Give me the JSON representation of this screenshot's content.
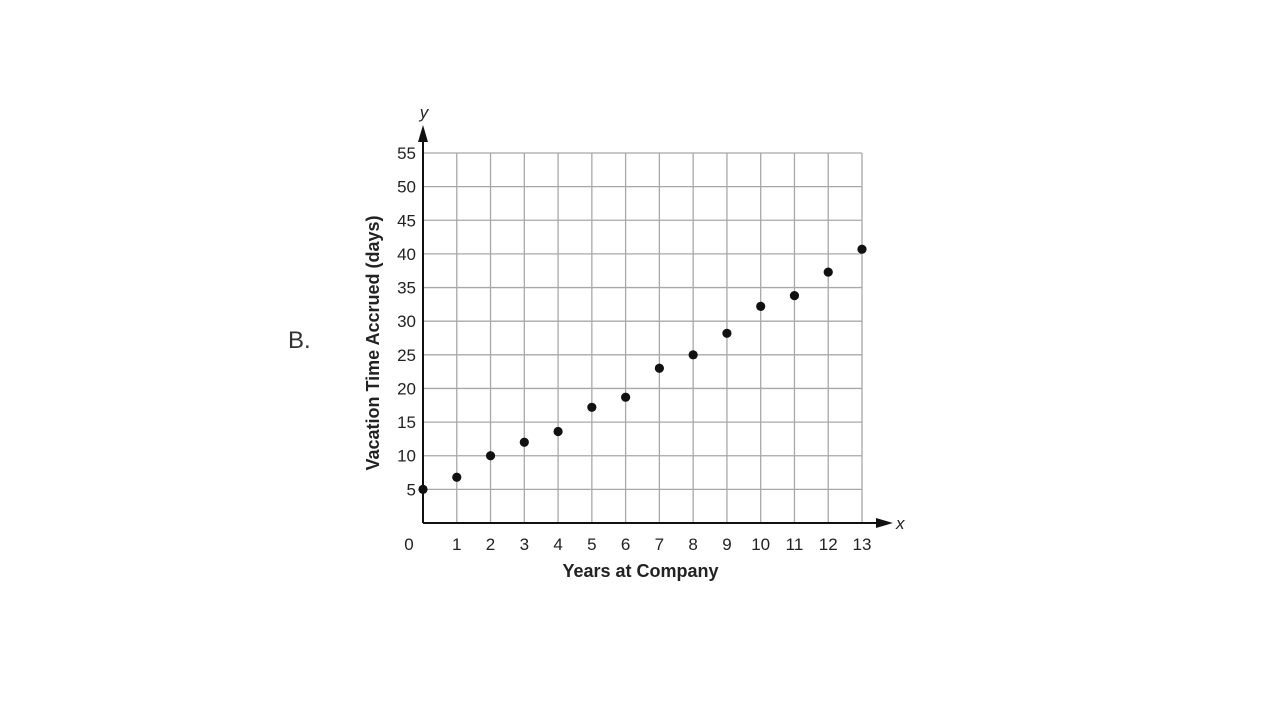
{
  "option_label": "B.",
  "chart_data": {
    "type": "scatter",
    "title": "",
    "xlabel": "Years at Company",
    "ylabel": "Vacation Time Accrued (days)",
    "x_axis_letter": "x",
    "y_axis_letter": "y",
    "xlim": [
      0,
      13
    ],
    "ylim": [
      0,
      55
    ],
    "x_ticks": [
      0,
      1,
      2,
      3,
      4,
      5,
      6,
      7,
      8,
      9,
      10,
      11,
      12,
      13
    ],
    "y_ticks": [
      5,
      10,
      15,
      20,
      25,
      30,
      35,
      40,
      45,
      50,
      55
    ],
    "grid": true,
    "points": [
      {
        "x": 0,
        "y": 5
      },
      {
        "x": 1,
        "y": 6.8
      },
      {
        "x": 2,
        "y": 10
      },
      {
        "x": 3,
        "y": 12
      },
      {
        "x": 4,
        "y": 13.6
      },
      {
        "x": 5,
        "y": 17.2
      },
      {
        "x": 6,
        "y": 18.7
      },
      {
        "x": 7,
        "y": 23
      },
      {
        "x": 8,
        "y": 25
      },
      {
        "x": 9,
        "y": 28.2
      },
      {
        "x": 10,
        "y": 32.2
      },
      {
        "x": 11,
        "y": 33.8
      },
      {
        "x": 12,
        "y": 37.3
      },
      {
        "x": 13,
        "y": 40.7
      }
    ],
    "colors": {
      "grid": "#a8a8a8",
      "axis": "#111111",
      "point": "#111111"
    }
  }
}
